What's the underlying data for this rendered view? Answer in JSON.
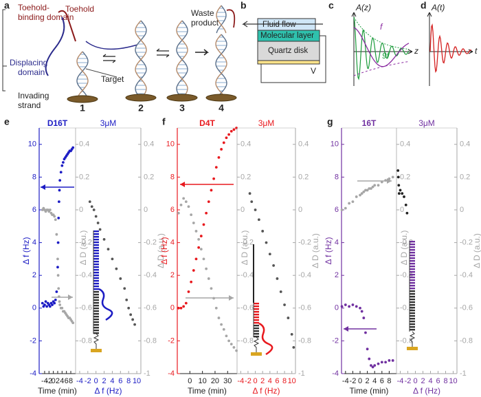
{
  "panel_labels": [
    "a",
    "b",
    "c",
    "d",
    "e",
    "f",
    "g"
  ],
  "panel_a": {
    "toehold_binding_domain": [
      "Toehold-",
      "binding domain"
    ],
    "toehold": "Toehold",
    "displacing_domain": [
      "Displacing",
      "domain"
    ],
    "invading_strand": [
      "Invading",
      "strand"
    ],
    "target": "Target",
    "waste_product": [
      "Waste",
      "product"
    ],
    "steps": [
      "1",
      "2",
      "3",
      "4"
    ]
  },
  "panel_b": {
    "fluid_flow": "Fluid flow",
    "molecular_layer": "Molecular layer",
    "quartz_disk": "Quartz disk",
    "voltage": "V"
  },
  "panel_c": {
    "y_label": "A(z)",
    "x_label": "z",
    "curve_1": "f",
    "curve_2": "9f"
  },
  "panel_d": {
    "y_label": "A(t)",
    "x_label": "t"
  },
  "chart_data": [
    {
      "type": "scatter",
      "title": "D16T",
      "color": "#1c1cc4",
      "xlabel": "Time (min)",
      "ylabel": "Δ f (Hz)",
      "y2label": "Δ D (a.u.)",
      "x": [
        -5,
        -4.5,
        -4,
        -3.5,
        -3,
        -2.5,
        -2,
        -1.5,
        -1,
        -0.5,
        0,
        0.5,
        1,
        1.5,
        2,
        2.2,
        2.4,
        2.6,
        2.8,
        3,
        3.5,
        4,
        4.5,
        5,
        5.5,
        6,
        6.5,
        7,
        7.5,
        8,
        8.5,
        9
      ],
      "xlim": [
        -6.5,
        10.2
      ],
      "xticks": [
        -4,
        -2,
        0,
        2,
        4,
        6,
        8
      ],
      "ylim": [
        -4,
        11
      ],
      "yticks": [
        -4,
        -2,
        0,
        2,
        4,
        6,
        8,
        10
      ],
      "y2lim": [
        -1,
        0.5
      ],
      "y2ticks": [
        -0.8,
        -0.6,
        -0.4,
        -0.2,
        0,
        0.2,
        0.4
      ],
      "series": [
        {
          "color": "#1c1cc4",
          "values": [
            0.3,
            0.1,
            0.2,
            0.4,
            0.1,
            0.3,
            0.2,
            0.1,
            0.3,
            0.2,
            0.4,
            0.3,
            0.5,
            1.0,
            2.5,
            4.0,
            5.5,
            6.5,
            7.2,
            7.8,
            8.3,
            8.7,
            8.9,
            9.1,
            9.2,
            9.3,
            9.4,
            9.5,
            9.6,
            9.6,
            9.7,
            9.8
          ]
        },
        {
          "color": "#a6a6a6",
          "axis": "y2",
          "values": [
            0.0,
            0.01,
            0,
            -0.01,
            0,
            0,
            -0.01,
            0,
            -0.02,
            -0.03,
            -0.03,
            -0.04,
            -0.06,
            -0.15,
            -0.3,
            -0.4,
            -0.48,
            -0.53,
            -0.56,
            -0.58,
            -0.6,
            -0.6,
            -0.62,
            -0.62,
            -0.63,
            -0.64,
            -0.65,
            -0.66,
            -0.66,
            -0.67,
            -0.68,
            -0.69
          ]
        }
      ]
    },
    {
      "type": "scatter",
      "title": "3μM",
      "color": "#1c1cc4",
      "xlabel": "Δ f (Hz)",
      "ylabel": "Δ D (a.u.)",
      "x": [
        -1.5,
        -1,
        -0.5,
        0,
        0.5,
        1,
        2,
        3,
        4,
        5,
        6,
        7,
        7.5,
        8,
        8.5,
        9,
        9.5
      ],
      "xlim": [
        -5,
        11
      ],
      "xticks": [
        -4,
        -2,
        0,
        2,
        4,
        6,
        8,
        10
      ],
      "ylim": [
        -1,
        0.5
      ],
      "yticks": [
        -1,
        -0.8,
        -0.6,
        -0.4,
        -0.2,
        0,
        0.2,
        0.4
      ],
      "series": [
        {
          "color": "#555555",
          "values": [
            0.05,
            0.02,
            0,
            -0.04,
            -0.08,
            -0.12,
            -0.18,
            -0.24,
            -0.3,
            -0.36,
            -0.42,
            -0.48,
            -0.55,
            -0.6,
            -0.64,
            -0.67,
            -0.7
          ]
        }
      ]
    },
    {
      "type": "scatter",
      "title": "D4T",
      "color": "#e8191e",
      "xlabel": "Time (min)",
      "ylabel": "Δ f (Hz)",
      "y2label": "Δ D (a.u.)",
      "x": [
        -9,
        -7,
        -5,
        -3,
        -1,
        1,
        3,
        5,
        7,
        9,
        11,
        13,
        15,
        17,
        19,
        21,
        23,
        25,
        27,
        29,
        31,
        33,
        35,
        37
      ],
      "xlim": [
        -10,
        37.5
      ],
      "xticks": [
        0,
        10,
        20,
        30
      ],
      "ylim": [
        -4,
        11
      ],
      "yticks": [
        -4,
        -2,
        0,
        2,
        4,
        6,
        8,
        10
      ],
      "y2lim": [
        -1,
        0.5
      ],
      "y2ticks": [
        -0.8,
        -0.6,
        -0.4,
        -0.2,
        0,
        0.2,
        0.4
      ],
      "series": [
        {
          "color": "#e8191e",
          "values": [
            0,
            0,
            0.1,
            0.3,
            1.0,
            1.6,
            2.3,
            3.0,
            3.7,
            4.4,
            5.1,
            5.8,
            6.5,
            7.2,
            7.9,
            8.6,
            9.2,
            9.7,
            10.1,
            10.4,
            10.6,
            10.8,
            10.9,
            11.0
          ]
        },
        {
          "color": "#a6a6a6",
          "axis": "y2",
          "values": [
            -0.02,
            0.03,
            0.07,
            0.05,
            0.02,
            -0.03,
            -0.08,
            -0.13,
            -0.18,
            -0.24,
            -0.3,
            -0.36,
            -0.42,
            -0.48,
            -0.54,
            -0.6,
            -0.66,
            -0.7,
            -0.73,
            -0.77,
            -0.8,
            -0.82,
            -0.84,
            -0.86
          ]
        }
      ]
    },
    {
      "type": "scatter",
      "title": "3μM",
      "color": "#e8191e",
      "xlabel": "Δ f (Hz)",
      "ylabel": "Δ D (a.u.)",
      "x": [
        -1.5,
        -1,
        0,
        1,
        2,
        3,
        4,
        5,
        6,
        7,
        8,
        9,
        10,
        10.5
      ],
      "xlim": [
        -5,
        11
      ],
      "xticks": [
        -4,
        -2,
        0,
        2,
        4,
        6,
        8,
        10
      ],
      "ylim": [
        -1,
        0.5
      ],
      "yticks": [
        -1,
        -0.8,
        -0.6,
        -0.4,
        -0.2,
        0,
        0.2,
        0.4
      ],
      "series": [
        {
          "color": "#555555",
          "values": [
            0.1,
            0.05,
            0,
            -0.06,
            -0.13,
            -0.2,
            -0.27,
            -0.34,
            -0.42,
            -0.5,
            -0.58,
            -0.66,
            -0.76,
            -0.84
          ]
        }
      ]
    },
    {
      "type": "scatter",
      "title": "16T",
      "color": "#7030a0",
      "xlabel": "Time (min)",
      "ylabel": "Δ f (Hz)",
      "y2label": "Δ D (a.u.)",
      "x": [
        -5,
        -4,
        -3,
        -2,
        -1,
        0,
        0.5,
        1,
        1.5,
        2,
        2.5,
        3,
        3.5,
        4,
        5,
        6,
        7,
        8,
        9
      ],
      "xlim": [
        -5.1,
        10
      ],
      "xticks": [
        -4,
        -2,
        0,
        2,
        4,
        6,
        8
      ],
      "ylim": [
        -4,
        11
      ],
      "yticks": [
        -4,
        -2,
        0,
        2,
        4,
        6,
        8,
        10
      ],
      "y2lim": [
        -1,
        0.5
      ],
      "y2ticks": [
        -0.8,
        -0.6,
        -0.4,
        -0.2,
        0,
        0.2,
        0.4
      ],
      "series": [
        {
          "color": "#7030a0",
          "values": [
            0.1,
            0.2,
            0.1,
            0.2,
            0.1,
            0,
            -0.2,
            -0.6,
            -1.5,
            -2.5,
            -3.1,
            -3.5,
            -3.6,
            -3.5,
            -3.4,
            -3.3,
            -3.3,
            -3.2,
            -3.2
          ]
        },
        {
          "color": "#a6a6a6",
          "axis": "y2",
          "values": [
            0,
            0.01,
            0.04,
            0.05,
            0.08,
            0.09,
            0.1,
            0.11,
            0.12,
            0.12,
            0.13,
            0.13,
            0.14,
            0.15,
            0.15,
            0.17,
            0.18,
            0.19,
            0.2
          ]
        }
      ]
    },
    {
      "type": "scatter",
      "title": "3μM",
      "color": "#7030a0",
      "xlabel": "Δ f (Hz)",
      "ylabel": "Δ D (a.u.)",
      "x": [
        -4.6,
        -4.5,
        -4.4,
        -4.3,
        -4.0,
        -3.5,
        -3,
        -2.5,
        -2.2
      ],
      "xlim": [
        -5,
        11
      ],
      "xticks": [
        -4,
        -2,
        0,
        2,
        4,
        6,
        8,
        10
      ],
      "ylim": [
        -1,
        0.5
      ],
      "yticks": [
        -1,
        -0.8,
        -0.6,
        -0.4,
        -0.2,
        0,
        0.2,
        0.4
      ],
      "series": [
        {
          "color": "#222222",
          "values": [
            0.24,
            0.2,
            0.15,
            0.1,
            0.12,
            0.1,
            0.08,
            0.03,
            -0.02
          ]
        }
      ]
    }
  ]
}
